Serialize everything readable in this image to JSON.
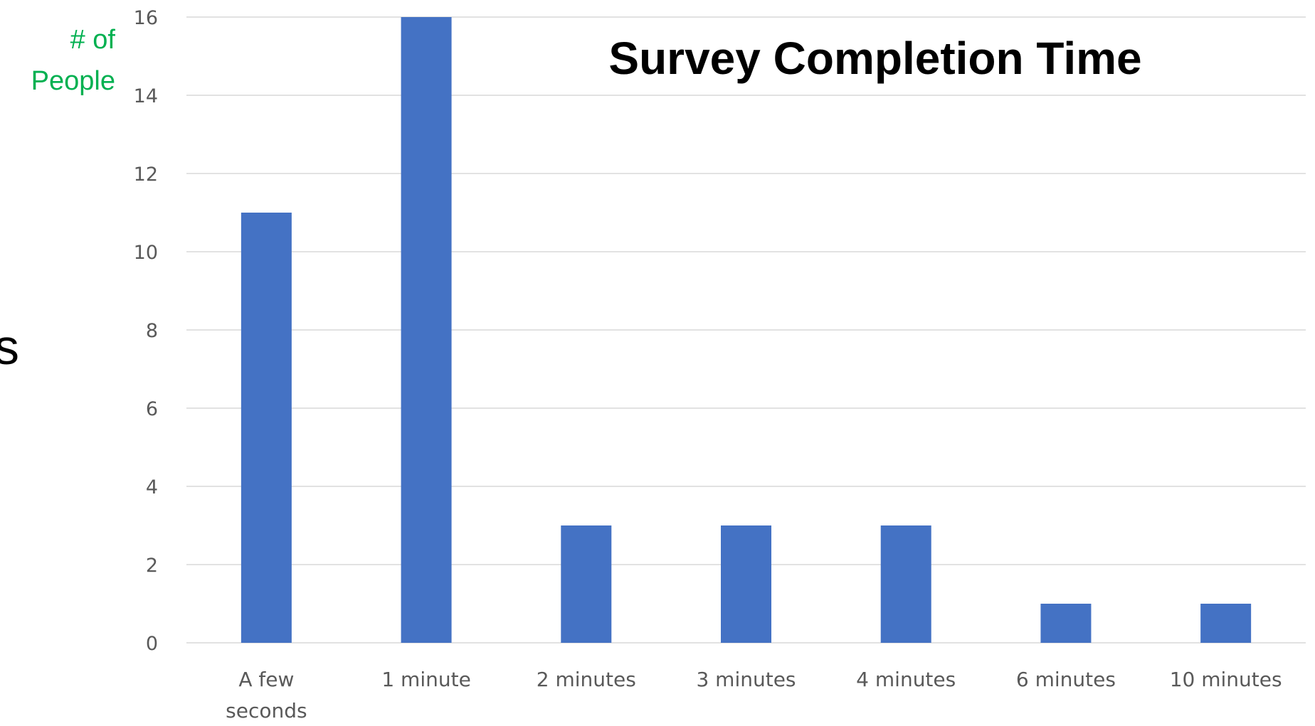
{
  "chart_data": {
    "type": "bar",
    "title": "Survey Completion Time",
    "ylabel": [
      "# of",
      "People"
    ],
    "xlabel": "",
    "categories": [
      [
        "A few",
        "seconds"
      ],
      [
        "1 minute"
      ],
      [
        "2 minutes"
      ],
      [
        "3 minutes"
      ],
      [
        "4 minutes"
      ],
      [
        "6 minutes"
      ],
      [
        "10 minutes"
      ]
    ],
    "values": [
      11,
      16,
      3,
      3,
      3,
      1,
      1
    ],
    "ylim": [
      0,
      16
    ],
    "yticks": [
      0,
      2,
      4,
      6,
      8,
      10,
      12,
      14,
      16
    ],
    "grid": true,
    "bar_color": "#4472c4",
    "ylabel_color": "#00b050"
  },
  "page": {
    "cut_off_text": "s"
  }
}
